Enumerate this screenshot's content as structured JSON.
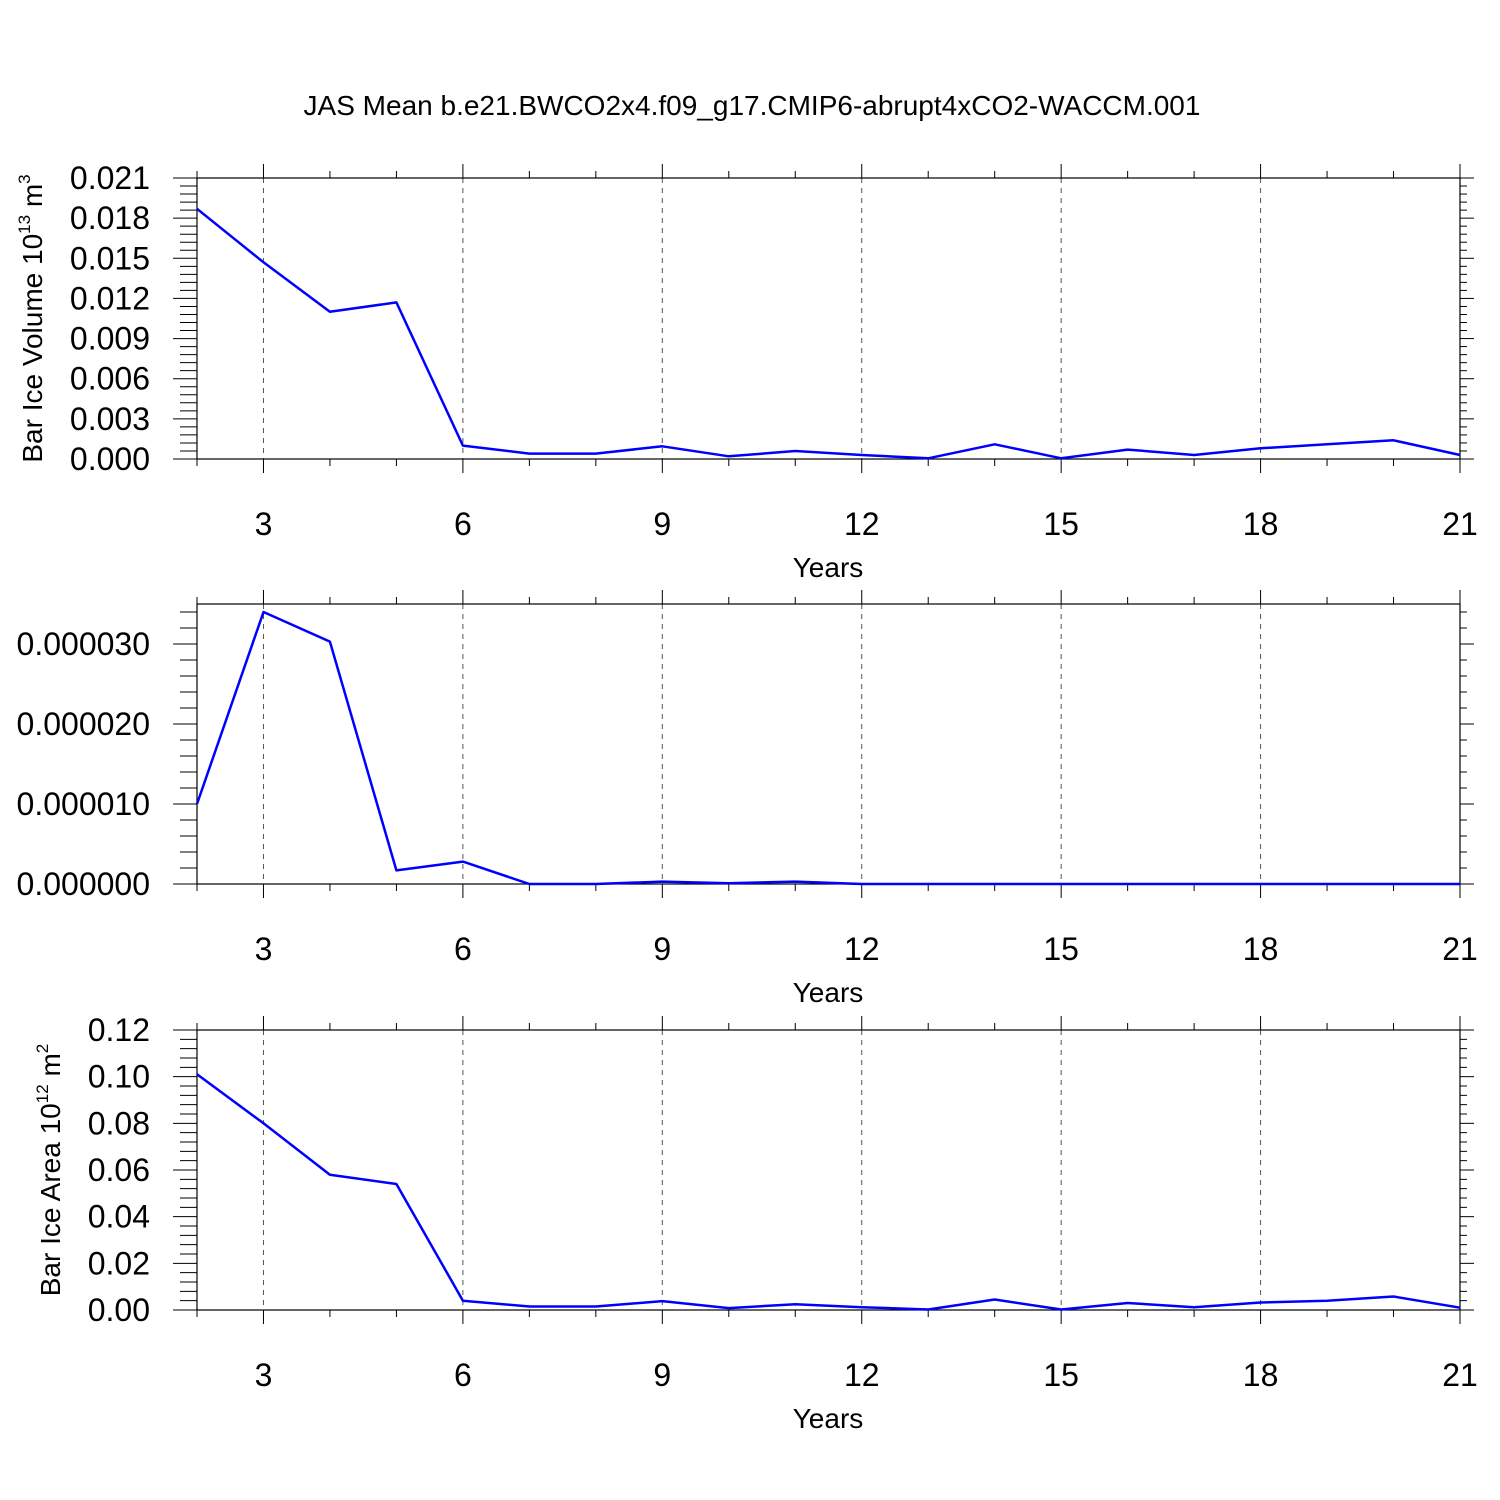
{
  "title": "JAS Mean b.e21.BWCO2x4.f09_g17.CMIP6-abrupt4xCO2-WACCM.001",
  "colors": {
    "series": "#0000ff",
    "axis": "#000000",
    "grid": "#555555"
  },
  "chart_data": [
    {
      "type": "line",
      "xlabel": "Years",
      "ylabel": "Bar Ice Volume 10",
      "ylabel_sup": "13",
      "ylabel_unit": " m",
      "ylabel_unit_sup": "3",
      "xlim": [
        2,
        21
      ],
      "ylim": [
        0,
        0.021
      ],
      "xticks": [
        3,
        6,
        9,
        12,
        15,
        18,
        21
      ],
      "xtick_labels": [
        "3",
        "6",
        "9",
        "12",
        "15",
        "18",
        "21"
      ],
      "yticks": [
        0,
        0.003,
        0.006,
        0.009,
        0.012,
        0.015,
        0.018,
        0.021
      ],
      "ytick_labels": [
        "0.000",
        "0.003",
        "0.006",
        "0.009",
        "0.012",
        "0.015",
        "0.018",
        "0.021"
      ],
      "grid": "vertical dashed",
      "x": [
        2,
        3,
        4,
        5,
        6,
        7,
        8,
        9,
        10,
        11,
        12,
        13,
        14,
        15,
        16,
        17,
        18,
        19,
        20,
        21
      ],
      "series": [
        {
          "values": [
            0.0187,
            0.0147,
            0.011,
            0.0117,
            0.001,
            0.0004,
            0.0004,
            0.00095,
            0.0002,
            0.0006,
            0.0003,
            5e-05,
            0.0011,
            5e-05,
            0.0007,
            0.0003,
            0.0008,
            0.0011,
            0.0014,
            0.0003
          ]
        }
      ]
    },
    {
      "type": "line",
      "xlabel": "Years",
      "xlim": [
        2,
        21
      ],
      "ylim": [
        0,
        3.5e-05
      ],
      "xticks": [
        3,
        6,
        9,
        12,
        15,
        18,
        21
      ],
      "xtick_labels": [
        "3",
        "6",
        "9",
        "12",
        "15",
        "18",
        "21"
      ],
      "yticks": [
        0,
        1e-05,
        2e-05,
        3e-05
      ],
      "ytick_labels": [
        "0.000000",
        "0.000010",
        "0.000020",
        "0.000030"
      ],
      "grid": "vertical dashed",
      "x": [
        2,
        3,
        4,
        5,
        6,
        7,
        8,
        9,
        10,
        11,
        12,
        13,
        14,
        15,
        16,
        17,
        18,
        19,
        20,
        21
      ],
      "series": [
        {
          "values": [
            1e-05,
            3.4e-05,
            3.03e-05,
            1.7e-06,
            2.8e-06,
            0.0,
            0.0,
            3e-07,
            1e-07,
            3e-07,
            0.0,
            0.0,
            0.0,
            0.0,
            0.0,
            0.0,
            0.0,
            0.0,
            0.0,
            0.0
          ]
        }
      ]
    },
    {
      "type": "line",
      "xlabel": "Years",
      "ylabel": "Bar Ice Area 10",
      "ylabel_sup": "12",
      "ylabel_unit": " m",
      "ylabel_unit_sup": "2",
      "xlim": [
        2,
        21
      ],
      "ylim": [
        0,
        0.12
      ],
      "xticks": [
        3,
        6,
        9,
        12,
        15,
        18,
        21
      ],
      "xtick_labels": [
        "3",
        "6",
        "9",
        "12",
        "15",
        "18",
        "21"
      ],
      "yticks": [
        0,
        0.02,
        0.04,
        0.06,
        0.08,
        0.1,
        0.12
      ],
      "ytick_labels": [
        "0.00",
        "0.02",
        "0.04",
        "0.06",
        "0.08",
        "0.10",
        "0.12"
      ],
      "grid": "vertical dashed",
      "x": [
        2,
        3,
        4,
        5,
        6,
        7,
        8,
        9,
        10,
        11,
        12,
        13,
        14,
        15,
        16,
        17,
        18,
        19,
        20,
        21
      ],
      "series": [
        {
          "values": [
            0.101,
            0.08,
            0.058,
            0.054,
            0.004,
            0.0015,
            0.0015,
            0.0038,
            0.0008,
            0.0025,
            0.0012,
            0.0002,
            0.0045,
            0.0002,
            0.003,
            0.0012,
            0.0032,
            0.004,
            0.0058,
            0.001
          ]
        }
      ]
    }
  ]
}
